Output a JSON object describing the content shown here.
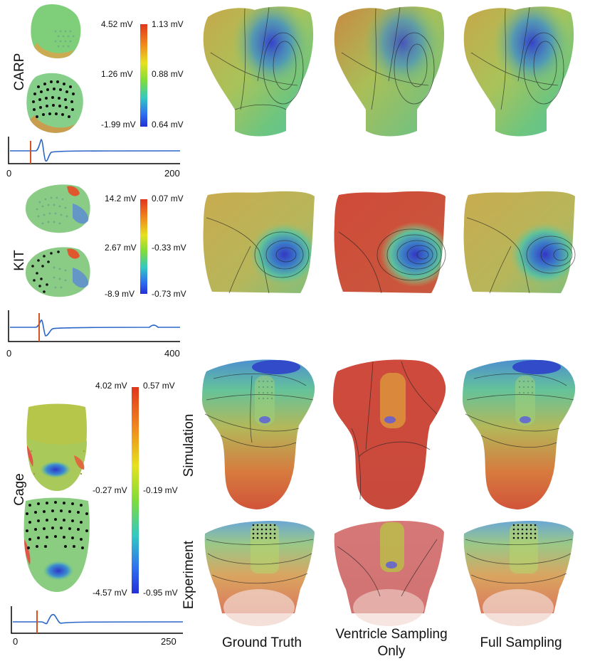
{
  "rows": {
    "carp": {
      "label": "CARP",
      "scale_left": [
        "4.52 mV",
        "1.26 mV",
        "-1.99 mV"
      ],
      "scale_right": [
        "1.13 mV",
        "0.88 mV",
        "0.64 mV"
      ],
      "trace_axis": [
        "0",
        "200"
      ]
    },
    "kit": {
      "label": "KIT",
      "scale_left": [
        "14.2 mV",
        "2.67 mV",
        "-8.9 mV"
      ],
      "scale_right": [
        "0.07 mV",
        "-0.33 mV",
        "-0.73 mV"
      ],
      "trace_axis": [
        "0",
        "400"
      ]
    },
    "cage": {
      "label": "Cage",
      "scale_left": [
        "4.02 mV",
        "-0.27 mV",
        "-4.57 mV"
      ],
      "scale_right": [
        "0.57 mV",
        "-0.19 mV",
        "-0.95 mV"
      ],
      "trace_axis": [
        "0",
        "250"
      ],
      "sub_rows": [
        "Simulation",
        "Experiment"
      ]
    }
  },
  "columns": [
    "Ground Truth",
    "Ventricle Sampling Only",
    "Full Sampling"
  ],
  "colors": {
    "trace": "#2a66c8",
    "marker": "#d9531e"
  }
}
